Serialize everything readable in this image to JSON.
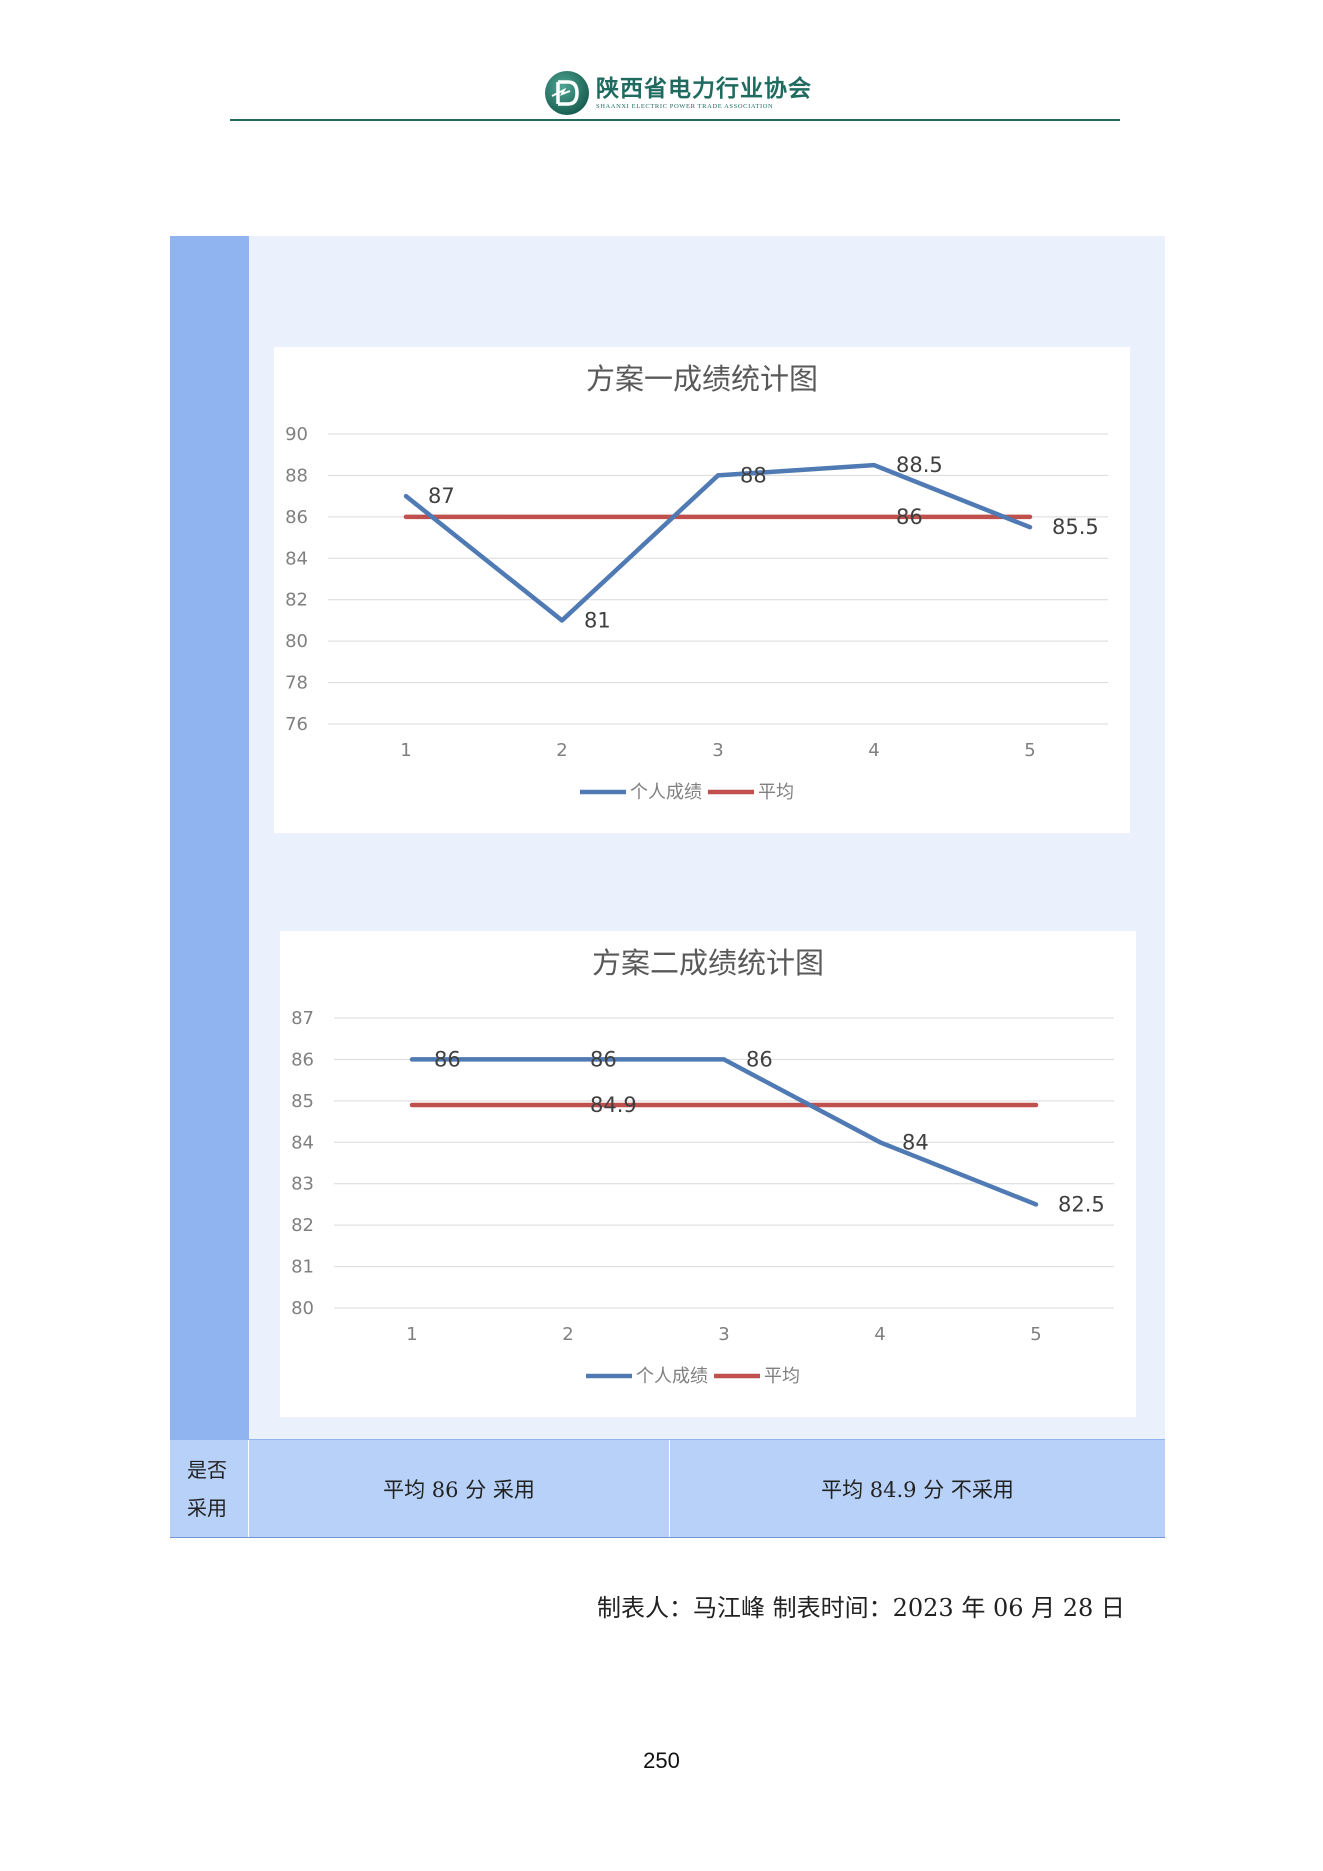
{
  "header": {
    "org_name_cn": "陕西省电力行业协会",
    "org_name_en": "SHAANXI ELECTRIC POWER TRADE ASSOCIATION",
    "brand_color": "#1f6b5f"
  },
  "chart_data": [
    {
      "type": "line",
      "title": "方案一成绩统计图",
      "categories": [
        "1",
        "2",
        "3",
        "4",
        "5"
      ],
      "ylim": [
        76,
        90
      ],
      "yticks": [
        76,
        78,
        80,
        82,
        84,
        86,
        88,
        90
      ],
      "grid": true,
      "legend_placement": "bottom",
      "series": [
        {
          "name": "个人成绩",
          "values": [
            87,
            81,
            88,
            88.5,
            85.5
          ],
          "labels": [
            "87",
            "81",
            "88",
            "88.5",
            "85.5"
          ],
          "color": "#4f7ab3"
        },
        {
          "name": "平均",
          "values": [
            86,
            86,
            86,
            86,
            86
          ],
          "labels": [
            "",
            "",
            "",
            "86",
            ""
          ],
          "color": "#c0504d"
        }
      ]
    },
    {
      "type": "line",
      "title": "方案二成绩统计图",
      "categories": [
        "1",
        "2",
        "3",
        "4",
        "5"
      ],
      "ylim": [
        80,
        87
      ],
      "yticks": [
        80,
        81,
        82,
        83,
        84,
        85,
        86,
        87
      ],
      "grid": true,
      "legend_placement": "bottom",
      "series": [
        {
          "name": "个人成绩",
          "values": [
            86,
            86,
            86,
            84,
            82.5
          ],
          "labels": [
            "86",
            "86",
            "86",
            "84",
            "82.5"
          ],
          "color": "#4f7ab3"
        },
        {
          "name": "平均",
          "values": [
            84.9,
            84.9,
            84.9,
            84.9,
            84.9
          ],
          "labels": [
            "",
            "84.9",
            "",
            "",
            ""
          ],
          "color": "#c0504d"
        }
      ]
    }
  ],
  "table": {
    "row_label_line1": "是否",
    "row_label_line2": "采用",
    "option1": "平均 86 分  采用",
    "option2": "平均 84.9 分  不采用"
  },
  "footer": {
    "maker": "制表人：马江峰  制表时间：2023 年 06 月 28 日",
    "page_number": "250"
  }
}
